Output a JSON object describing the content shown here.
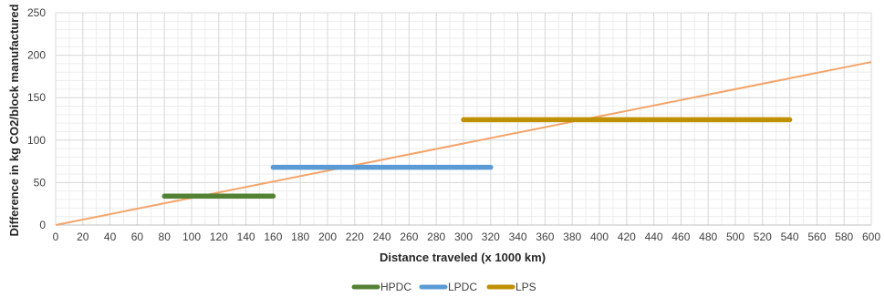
{
  "chart_data": {
    "type": "line",
    "title": "",
    "xlabel": "Distance traveled (x 1000 km)",
    "ylabel": "Difference in kg CO2/block manufactured",
    "xlim": [
      0,
      600
    ],
    "ylim": [
      0,
      250
    ],
    "x_ticks": [
      "0",
      "20",
      "40",
      "60",
      "80",
      "100",
      "120",
      "140",
      "160",
      "180",
      "200",
      "220",
      "240",
      "260",
      "280",
      "300",
      "320",
      "340",
      "360",
      "380",
      "400",
      "420",
      "440",
      "460",
      "480",
      "500",
      "520",
      "540",
      "560",
      "580",
      "600"
    ],
    "y_ticks": [
      "0",
      "50",
      "100",
      "150",
      "200",
      "250"
    ],
    "grid": true,
    "legend_position": "bottom",
    "trend_line": {
      "color": "#f4a46a",
      "x": [
        0,
        600
      ],
      "y": [
        0,
        192
      ]
    },
    "series": [
      {
        "name": "HPDC",
        "color": "#548235",
        "x": [
          80,
          160
        ],
        "y": [
          34,
          34
        ]
      },
      {
        "name": "LPDC",
        "color": "#5b9bd5",
        "x": [
          160,
          320
        ],
        "y": [
          68,
          68
        ]
      },
      {
        "name": "LPS",
        "color": "#bf9000",
        "x": [
          300,
          540
        ],
        "y": [
          124,
          124
        ]
      }
    ]
  }
}
